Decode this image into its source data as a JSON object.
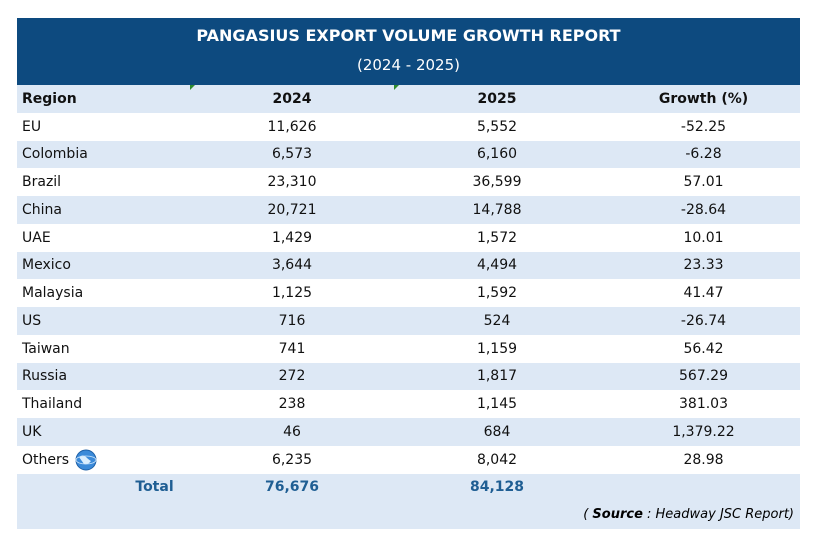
{
  "header": {
    "title": "PANGASIUS EXPORT VOLUME GROWTH REPORT",
    "subtitle": "(2024 - 2025)"
  },
  "table": {
    "columns": [
      "Region",
      "2024",
      "2025",
      "Growth (%)"
    ],
    "rows": [
      [
        "EU",
        "11,626",
        "5,552",
        "-52.25"
      ],
      [
        "Colombia",
        "6,573",
        "6,160",
        "-6.28"
      ],
      [
        "Brazil",
        "23,310",
        "36,599",
        "57.01"
      ],
      [
        "China",
        "20,721",
        "14,788",
        "-28.64"
      ],
      [
        "UAE",
        "1,429",
        "1,572",
        "10.01"
      ],
      [
        "Mexico",
        "3,644",
        "4,494",
        "23.33"
      ],
      [
        "Malaysia",
        "1,125",
        "1,592",
        "41.47"
      ],
      [
        "US",
        "716",
        "524",
        "-26.74"
      ],
      [
        "Taiwan",
        "741",
        "1,159",
        "56.42"
      ],
      [
        "Russia",
        "272",
        "1,817",
        "567.29"
      ],
      [
        "Thailand",
        "238",
        "1,145",
        "381.03"
      ],
      [
        "UK",
        "46",
        "684",
        "1,379.22"
      ],
      [
        "Others",
        "6,235",
        "8,042",
        "28.98"
      ]
    ],
    "total": [
      "Total",
      "76,676",
      "84,128"
    ]
  },
  "source": {
    "prefix": "( ",
    "label": "Source",
    "suffix": " : Headway JSC Report)"
  }
}
